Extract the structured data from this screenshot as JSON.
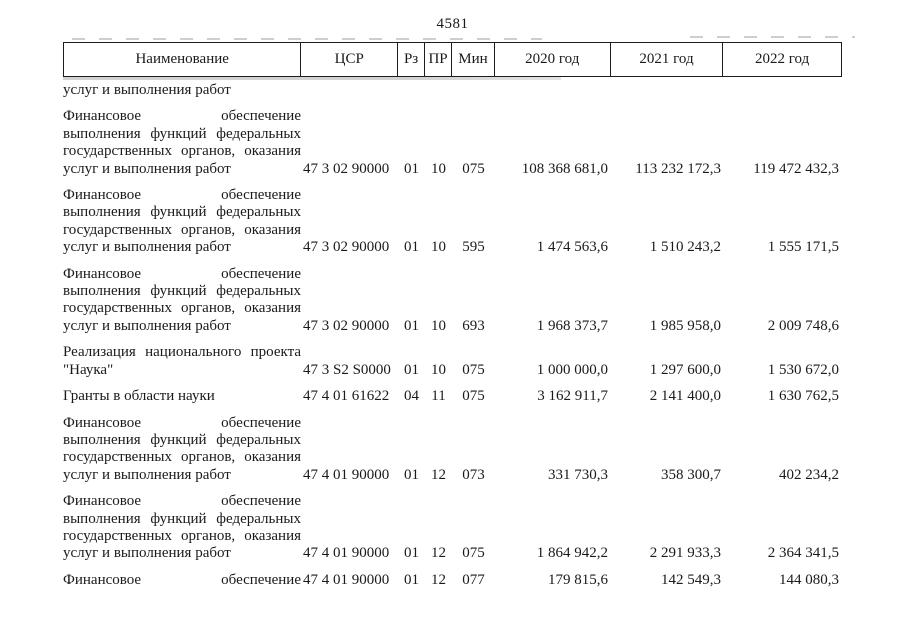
{
  "page_number": "4581",
  "colors": {
    "background": "#ffffff",
    "text": "#1a1a1a",
    "table_border": "#1c1c1c"
  },
  "table": {
    "columns": [
      {
        "key": "name",
        "label": "Наименование"
      },
      {
        "key": "csr",
        "label": "ЦСР"
      },
      {
        "key": "rz",
        "label": "Рз"
      },
      {
        "key": "pr",
        "label": "ПР"
      },
      {
        "key": "min",
        "label": "Мин"
      },
      {
        "key": "y2020",
        "label": "2020 год"
      },
      {
        "key": "y2021",
        "label": "2021 год"
      },
      {
        "key": "y2022",
        "label": "2022 год"
      }
    ],
    "rows": [
      {
        "continuation": true,
        "name_lines": [
          "услуг и выполнения работ"
        ],
        "csr": "",
        "rz": "",
        "pr": "",
        "min": "",
        "y2020": "",
        "y2021": "",
        "y2022": ""
      },
      {
        "name_lines": [
          "Финансовое обеспечение",
          "выполнения функций федеральных",
          "государственных органов, оказания",
          "услуг и выполнения работ"
        ],
        "csr": "47 3 02 90000",
        "rz": "01",
        "pr": "10",
        "min": "075",
        "y2020": "108 368 681,0",
        "y2021": "113 232 172,3",
        "y2022": "119 472 432,3"
      },
      {
        "name_lines": [
          "Финансовое обеспечение",
          "выполнения функций федеральных",
          "государственных органов, оказания",
          "услуг и выполнения работ"
        ],
        "csr": "47 3 02 90000",
        "rz": "01",
        "pr": "10",
        "min": "595",
        "y2020": "1 474 563,6",
        "y2021": "1 510 243,2",
        "y2022": "1 555 171,5"
      },
      {
        "name_lines": [
          "Финансовое обеспечение",
          "выполнения функций федеральных",
          "государственных органов, оказания",
          "услуг и выполнения работ"
        ],
        "csr": "47 3 02 90000",
        "rz": "01",
        "pr": "10",
        "min": "693",
        "y2020": "1 968 373,7",
        "y2021": "1 985 958,0",
        "y2022": "2 009 748,6"
      },
      {
        "name_lines": [
          "Реализация национального проекта",
          "\"Наука\""
        ],
        "csr": "47 3 S2 S0000",
        "rz": "01",
        "pr": "10",
        "min": "075",
        "y2020": "1 000 000,0",
        "y2021": "1 297 600,0",
        "y2022": "1 530 672,0"
      },
      {
        "name_lines": [
          "Гранты в области науки"
        ],
        "csr": "47 4 01 61622",
        "rz": "04",
        "pr": "11",
        "min": "075",
        "y2020": "3 162 911,7",
        "y2021": "2 141 400,0",
        "y2022": "1 630 762,5"
      },
      {
        "name_lines": [
          "Финансовое обеспечение",
          "выполнения функций федеральных",
          "государственных органов, оказания",
          "услуг и выполнения работ"
        ],
        "csr": "47 4 01 90000",
        "rz": "01",
        "pr": "12",
        "min": "073",
        "y2020": "331 730,3",
        "y2021": "358 300,7",
        "y2022": "402 234,2"
      },
      {
        "name_lines": [
          "Финансовое обеспечение",
          "выполнения функций федеральных",
          "государственных органов, оказания",
          "услуг и выполнения работ"
        ],
        "csr": "47 4 01 90000",
        "rz": "01",
        "pr": "12",
        "min": "075",
        "y2020": "1 864 942,2",
        "y2021": "2 291 933,3",
        "y2022": "2 364 341,5"
      },
      {
        "justify_last": true,
        "name_lines": [
          "Финансовое обеспечение"
        ],
        "csr": "47 4 01 90000",
        "rz": "01",
        "pr": "12",
        "min": "077",
        "y2020": "179 815,6",
        "y2021": "142 549,3",
        "y2022": "144 080,3"
      }
    ]
  }
}
